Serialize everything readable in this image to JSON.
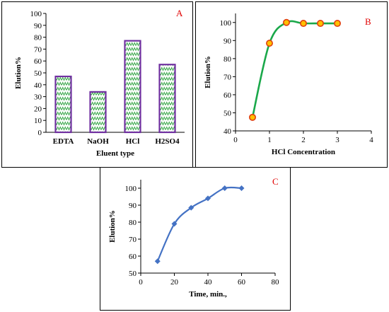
{
  "chart_data": [
    {
      "id": "A",
      "panel_label": "A",
      "type": "bar",
      "title": "",
      "xlabel": "Eluent type",
      "ylabel": "Elution%",
      "categories": [
        "EDTA",
        "NaOH",
        "HCl",
        "H2SO4"
      ],
      "values": [
        47,
        34,
        77,
        57
      ],
      "ylim": [
        0,
        100
      ],
      "yticks": [
        0,
        10,
        20,
        30,
        40,
        50,
        60,
        70,
        80,
        90,
        100
      ],
      "grid": false,
      "legend": "none",
      "colors": {
        "bar_border": "#7030a0",
        "bar_fill": "#ffffff",
        "bar_pattern": "#3aa84a"
      }
    },
    {
      "id": "B",
      "panel_label": "B",
      "type": "line",
      "title": "",
      "xlabel": "HCl Concentration",
      "ylabel": "Elution%",
      "x": [
        0.5,
        1,
        1.5,
        2,
        2.5,
        3
      ],
      "y": [
        47.5,
        88.5,
        100,
        99.5,
        99.5,
        99.5
      ],
      "xlim": [
        0,
        4
      ],
      "ylim": [
        40,
        105
      ],
      "xticks": [
        0,
        1,
        2,
        3,
        4
      ],
      "yticks": [
        40,
        50,
        60,
        70,
        80,
        90,
        100
      ],
      "grid": false,
      "legend": "none",
      "colors": {
        "line": "#1aa84a",
        "marker_fill": "#ffc000",
        "marker_edge": "#e04010"
      }
    },
    {
      "id": "C",
      "panel_label": "C",
      "type": "line",
      "title": "",
      "xlabel": "Time, min.,",
      "ylabel": "Elution%",
      "x": [
        10,
        20,
        30,
        40,
        50,
        60
      ],
      "y": [
        57,
        79,
        88.5,
        94,
        100,
        100
      ],
      "xlim": [
        0,
        80
      ],
      "ylim": [
        50,
        105
      ],
      "xticks": [
        0,
        20,
        40,
        60,
        80
      ],
      "yticks": [
        50,
        60,
        70,
        80,
        90,
        100
      ],
      "grid": false,
      "legend": "none",
      "colors": {
        "line": "#4472c4",
        "marker": "#4472c4"
      }
    }
  ]
}
